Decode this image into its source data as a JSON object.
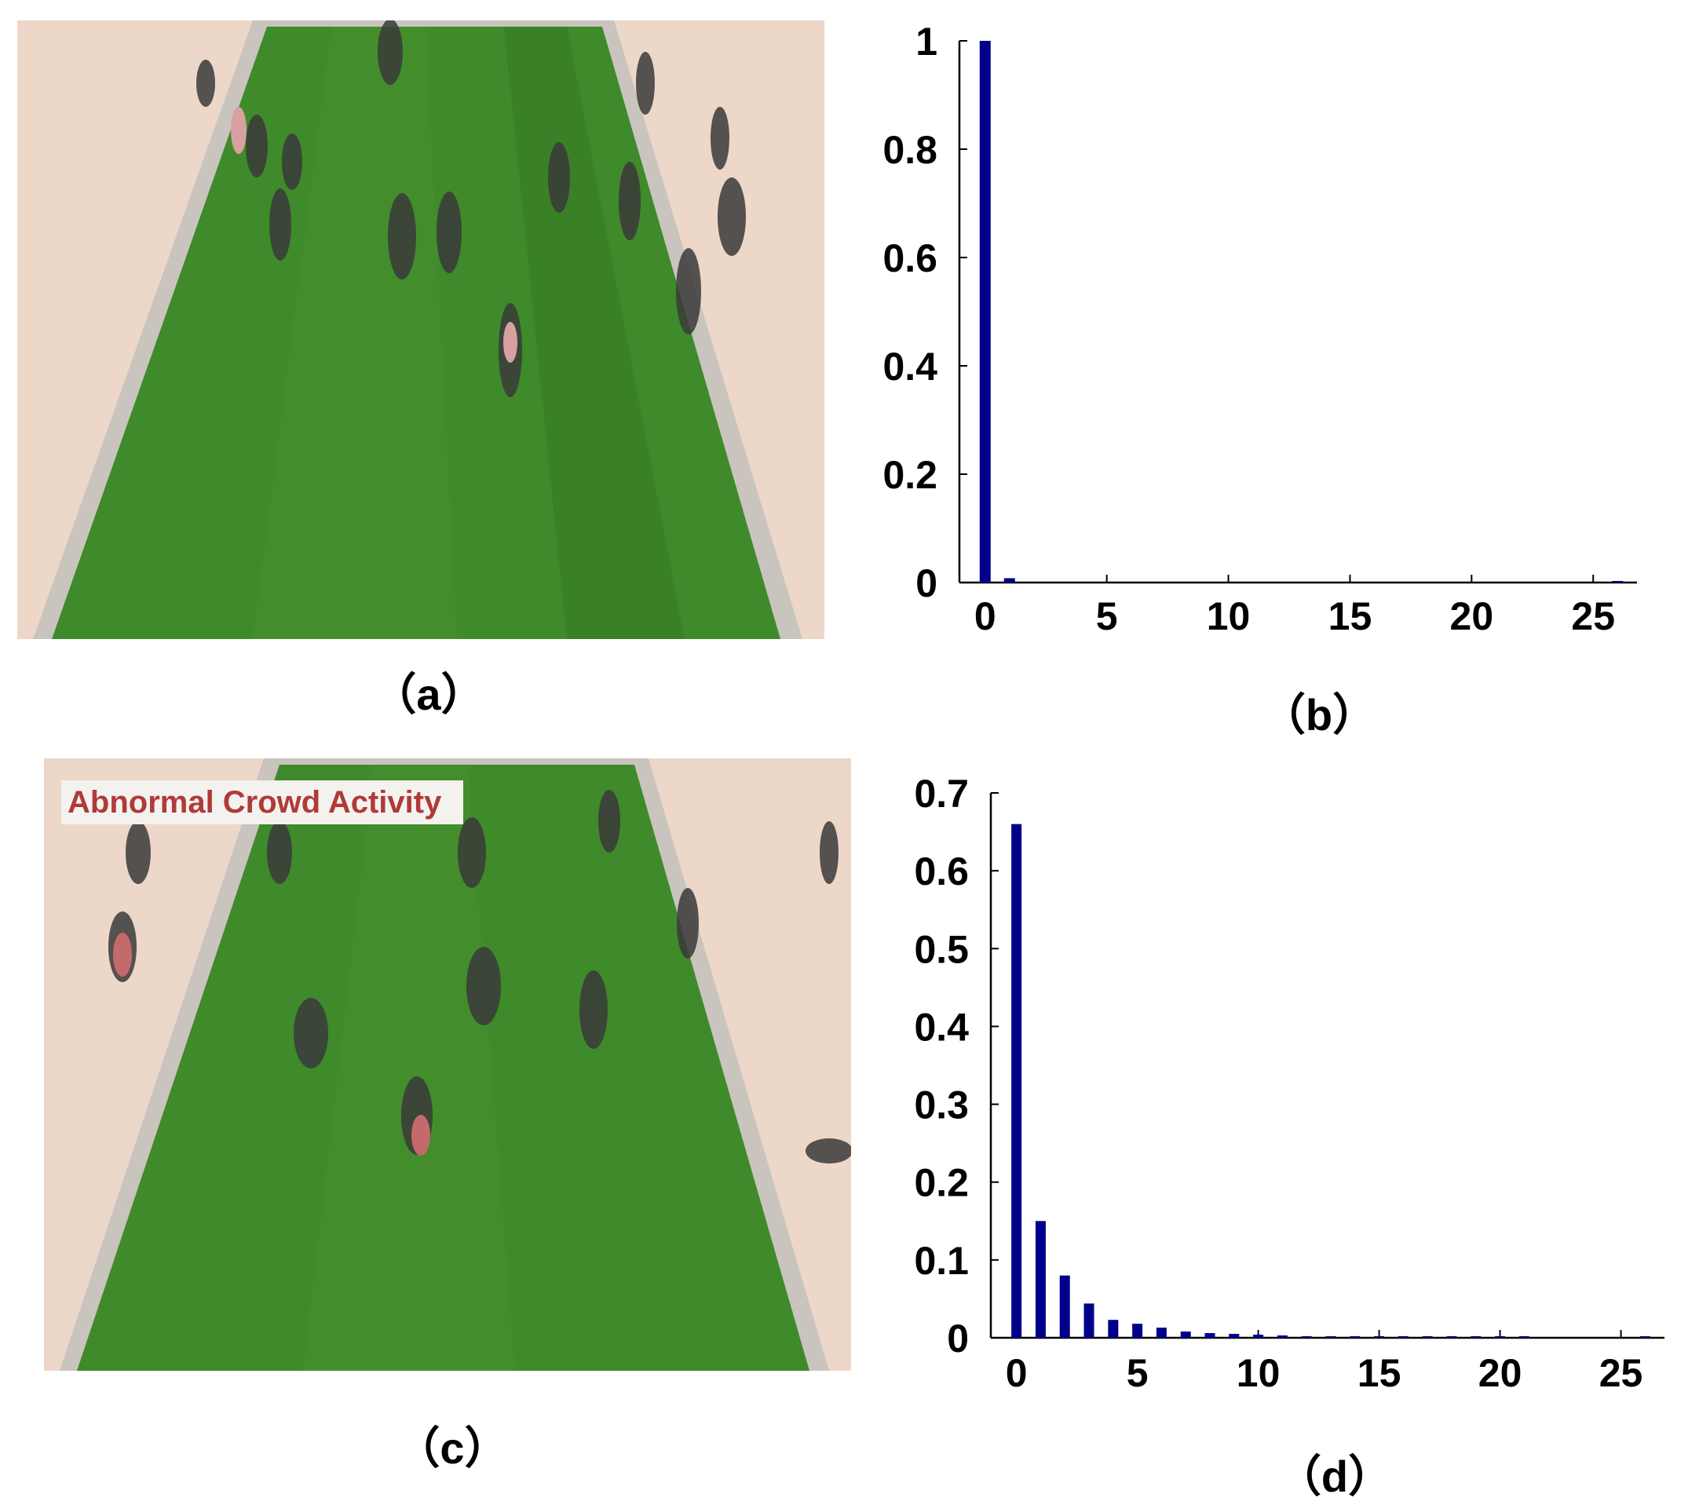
{
  "captions": {
    "a": "（a）",
    "b": "（b）",
    "c": "（c）",
    "d": "（d）"
  },
  "scene_c": {
    "alert_text": "Abnormal Crowd Activity"
  },
  "colors": {
    "bar": "#00008b",
    "grass": "#3f8a2a",
    "grass_dark": "#2f6e22",
    "pavement": "#ecd7c9",
    "curb": "#c9c4bd"
  },
  "chart_data": [
    {
      "id": "b",
      "type": "bar",
      "x": [
        0,
        1,
        2,
        3,
        4,
        5,
        6,
        7,
        8,
        9,
        10,
        11,
        12,
        13,
        14,
        15,
        16,
        17,
        18,
        19,
        20,
        21,
        22,
        23,
        24,
        25,
        26
      ],
      "values": [
        1.0,
        0.008,
        0,
        0,
        0,
        0,
        0,
        0,
        0,
        0,
        0,
        0,
        0,
        0,
        0,
        0,
        0,
        0,
        0,
        0,
        0,
        0,
        0,
        0,
        0,
        0,
        0.002
      ],
      "xlim": [
        -0.8,
        26.8
      ],
      "ylim": [
        0,
        1
      ],
      "xticks": [
        0,
        5,
        10,
        15,
        20,
        25
      ],
      "xtick_labels": [
        "0",
        "5",
        "10",
        "15",
        "20",
        "25"
      ],
      "yticks": [
        0,
        0.2,
        0.4,
        0.6,
        0.8,
        1
      ],
      "ytick_labels": [
        "0",
        "0.2",
        "0.4",
        "0.6",
        "0.8",
        "1"
      ],
      "grid": false,
      "title": "",
      "xlabel": "",
      "ylabel": ""
    },
    {
      "id": "d",
      "type": "bar",
      "x": [
        0,
        1,
        2,
        3,
        4,
        5,
        6,
        7,
        8,
        9,
        10,
        11,
        12,
        13,
        14,
        15,
        16,
        17,
        18,
        19,
        20,
        21,
        22,
        23,
        24,
        25,
        26
      ],
      "values": [
        0.66,
        0.15,
        0.08,
        0.044,
        0.023,
        0.018,
        0.013,
        0.008,
        0.006,
        0.005,
        0.004,
        0.003,
        0.002,
        0.002,
        0.002,
        0.002,
        0.001,
        0.001,
        0.001,
        0.001,
        0.001,
        0.001,
        0,
        0,
        0,
        0,
        0.001
      ],
      "xlim": [
        -0.8,
        26.8
      ],
      "ylim": [
        0,
        0.7
      ],
      "xticks": [
        0,
        5,
        10,
        15,
        20,
        25
      ],
      "xtick_labels": [
        "0",
        "5",
        "10",
        "15",
        "20",
        "25"
      ],
      "yticks": [
        0,
        0.1,
        0.2,
        0.3,
        0.4,
        0.5,
        0.6,
        0.7
      ],
      "ytick_labels": [
        "0",
        "0.1",
        "0.2",
        "0.3",
        "0.4",
        "0.5",
        "0.6",
        "0.7"
      ],
      "grid": false,
      "title": "",
      "xlabel": "",
      "ylabel": ""
    }
  ]
}
